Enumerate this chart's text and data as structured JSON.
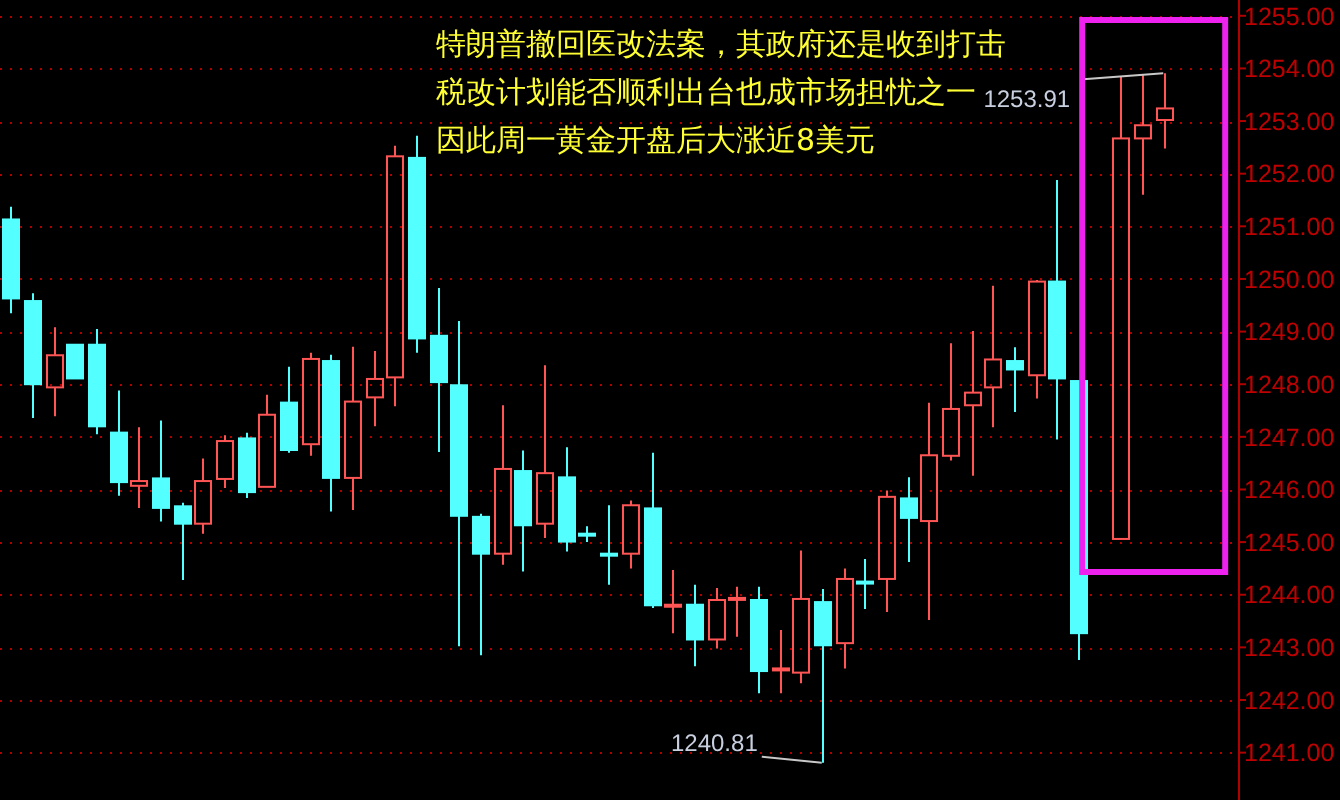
{
  "chart_data": {
    "type": "candlestick",
    "categories": [
      null,
      null,
      null,
      null,
      null,
      null,
      null,
      null,
      null,
      null,
      null,
      null,
      null,
      null,
      null,
      null,
      null,
      null,
      null,
      null,
      null,
      null,
      null,
      null,
      null,
      null,
      null,
      null,
      null,
      null,
      null,
      null,
      null,
      null,
      null,
      null,
      null,
      null,
      null,
      null,
      null,
      null,
      null,
      null,
      null,
      null,
      null,
      null,
      null,
      null,
      null,
      null,
      null,
      null,
      null,
      null,
      null,
      null
    ],
    "ohlc": [
      [
        1251.13,
        1251.37,
        1249.35,
        1249.63
      ],
      [
        1249.58,
        1249.73,
        1247.36,
        1248.0
      ],
      [
        1247.94,
        1249.08,
        1247.39,
        1248.55
      ],
      [
        1248.75,
        1248.75,
        1248.11,
        1248.11
      ],
      [
        1248.75,
        1249.05,
        1247.05,
        1247.2
      ],
      [
        1247.08,
        1247.88,
        1245.88,
        1246.14
      ],
      [
        1246.07,
        1247.18,
        1245.65,
        1246.16
      ],
      [
        1246.21,
        1247.31,
        1245.39,
        1245.65
      ],
      [
        1245.68,
        1245.75,
        1244.28,
        1245.35
      ],
      [
        1245.35,
        1246.59,
        1245.16,
        1246.16
      ],
      [
        1246.2,
        1247.03,
        1246.03,
        1246.92
      ],
      [
        1246.97,
        1247.08,
        1245.84,
        1245.95
      ],
      [
        1246.05,
        1247.8,
        1246.05,
        1247.42
      ],
      [
        1247.65,
        1248.33,
        1246.7,
        1246.75
      ],
      [
        1246.86,
        1248.6,
        1246.64,
        1248.48
      ],
      [
        1248.44,
        1248.56,
        1245.58,
        1246.22
      ],
      [
        1246.22,
        1248.71,
        1245.61,
        1247.67
      ],
      [
        1247.75,
        1248.63,
        1247.2,
        1248.1
      ],
      [
        1248.13,
        1252.53,
        1247.58,
        1252.33
      ],
      [
        1252.3,
        1252.72,
        1248.6,
        1248.87
      ],
      [
        1248.92,
        1249.83,
        1246.71,
        1248.04
      ],
      [
        1247.98,
        1249.2,
        1243.02,
        1245.5
      ],
      [
        1245.48,
        1245.54,
        1242.85,
        1244.78
      ],
      [
        1244.78,
        1247.6,
        1244.57,
        1246.39
      ],
      [
        1246.35,
        1246.74,
        1244.44,
        1245.32
      ],
      [
        1245.35,
        1248.36,
        1245.08,
        1246.31
      ],
      [
        1246.23,
        1246.8,
        1244.82,
        1245.01
      ],
      [
        1245.16,
        1245.3,
        1245.0,
        1245.16
      ],
      [
        1244.78,
        1245.7,
        1244.19,
        1244.78
      ],
      [
        1244.78,
        1245.79,
        1244.5,
        1245.7
      ],
      [
        1245.64,
        1246.7,
        1243.75,
        1243.8
      ],
      [
        1243.81,
        1244.47,
        1243.27,
        1243.81
      ],
      [
        1243.81,
        1244.19,
        1242.64,
        1243.15
      ],
      [
        1243.15,
        1244.13,
        1242.98,
        1243.9
      ],
      [
        1243.94,
        1244.15,
        1243.2,
        1243.94
      ],
      [
        1243.9,
        1244.15,
        1242.13,
        1242.55
      ],
      [
        1242.6,
        1243.33,
        1242.13,
        1242.6
      ],
      [
        1242.52,
        1244.84,
        1242.32,
        1243.92
      ],
      [
        1243.86,
        1244.11,
        1240.81,
        1243.04
      ],
      [
        1243.08,
        1244.5,
        1242.6,
        1244.3
      ],
      [
        1244.25,
        1244.68,
        1243.73,
        1244.25
      ],
      [
        1244.3,
        1245.98,
        1243.67,
        1245.86
      ],
      [
        1245.83,
        1246.23,
        1244.62,
        1245.46
      ],
      [
        1245.4,
        1247.65,
        1243.52,
        1246.65
      ],
      [
        1246.64,
        1248.78,
        1246.55,
        1247.53
      ],
      [
        1247.6,
        1249.01,
        1246.26,
        1247.84
      ],
      [
        1247.94,
        1249.87,
        1247.18,
        1248.47
      ],
      [
        1248.44,
        1248.7,
        1247.47,
        1248.28
      ],
      [
        1248.17,
        1249.98,
        1247.73,
        1249.95
      ],
      [
        1249.95,
        1251.88,
        1246.95,
        1248.11
      ],
      [
        1248.06,
        1248.06,
        1242.76,
        1243.27
      ],
      null,
      [
        1245.06,
        1253.85,
        1245.06,
        1252.67
      ],
      [
        1252.67,
        1253.88,
        1251.6,
        1252.92
      ],
      [
        1253.02,
        1253.91,
        1252.48,
        1253.24
      ],
      null,
      null,
      null
    ],
    "colors": [
      "#54ffff",
      "#54ffff",
      "#ff5555",
      "#54ffff",
      "#54ffff",
      "#54ffff",
      "#ff5555",
      "#54ffff",
      "#54ffff",
      "#ff5555",
      "#ff5555",
      "#54ffff",
      "#ff5555",
      "#54ffff",
      "#ff5555",
      "#54ffff",
      "#ff5555",
      "#ff5555",
      "#ff5555",
      "#54ffff",
      "#54ffff",
      "#54ffff",
      "#54ffff",
      "#ff5555",
      "#54ffff",
      "#ff5555",
      "#54ffff",
      "#54ffff",
      "#54ffff",
      "#ff5555",
      "#54ffff",
      "#ff5555",
      "#54ffff",
      "#ff5555",
      "#ff5555",
      "#54ffff",
      "#ff5555",
      "#ff5555",
      "#54ffff",
      "#ff5555",
      "#54ffff",
      "#ff5555",
      "#54ffff",
      "#ff5555",
      "#ff5555",
      "#ff5555",
      "#ff5555",
      "#54ffff",
      "#ff5555",
      "#54ffff",
      "#54ffff",
      null,
      "#ff5555",
      "#ff5555",
      "#ff5555",
      null,
      null,
      null
    ],
    "ylim": [
      1240.1,
      1255.3
    ],
    "yticks": [
      {
        "value": 1241,
        "label": "1241.00"
      },
      {
        "value": 1242,
        "label": "1242.00"
      },
      {
        "value": 1243,
        "label": "1243.00"
      },
      {
        "value": 1244,
        "label": "1244.00"
      },
      {
        "value": 1245,
        "label": "1245.00"
      },
      {
        "value": 1246,
        "label": "1246.00"
      },
      {
        "value": 1247,
        "label": "1247.00"
      },
      {
        "value": 1248,
        "label": "1248.00"
      },
      {
        "value": 1249,
        "label": "1249.00"
      },
      {
        "value": 1250,
        "label": "1250.00"
      },
      {
        "value": 1251,
        "label": "1251.00"
      },
      {
        "value": 1252,
        "label": "1252.00"
      },
      {
        "value": 1253,
        "label": "1253.00"
      },
      {
        "value": 1254,
        "label": "1254.00"
      },
      {
        "value": 1255,
        "label": "1255.00"
      }
    ],
    "grid": "y",
    "tick_labels": "y",
    "annotations": [
      "特朗普撤回医改法案，其政府还是收到打击",
      "税改计划能否顺利出台也成市场担忧之一",
      "因此周一黄金开盘后大涨近8美元",
      "1253.91",
      "1240.81"
    ]
  }
}
